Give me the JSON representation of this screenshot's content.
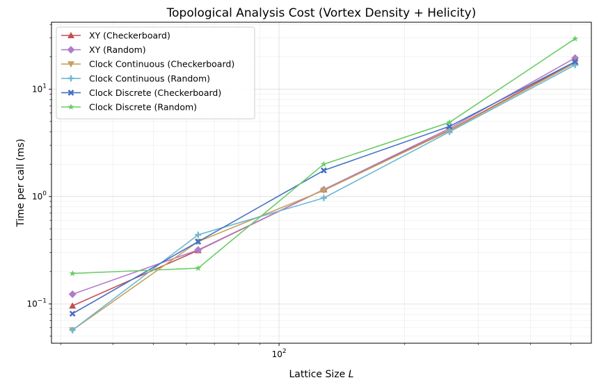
{
  "chart_data": {
    "type": "line",
    "title": "Topological Analysis Cost (Vortex Density + Helicity)",
    "xlabel_prefix": "Lattice Size ",
    "xlabel_var": "L",
    "ylabel": "Time per call (ms)",
    "xscale": "log",
    "yscale": "log",
    "xlim": [
      28.5,
      560
    ],
    "ylim": [
      0.043,
      42
    ],
    "grid": true,
    "legend_position": "top-left",
    "x": [
      32,
      64,
      128,
      256,
      512
    ],
    "x_tick_labels": [
      {
        "value": 100,
        "base": "10",
        "exp": "2"
      }
    ],
    "y_tick_labels": [
      {
        "value": 0.1,
        "base": "10",
        "exp": "−1"
      },
      {
        "value": 1,
        "base": "10",
        "exp": "0"
      },
      {
        "value": 10,
        "base": "10",
        "exp": "1"
      }
    ],
    "series": [
      {
        "name": "XY (Checkerboard)",
        "color": "#c44e52",
        "marker": "triangle-up",
        "values": [
          0.096,
          0.315,
          1.16,
          4.15,
          18.0
        ]
      },
      {
        "name": "XY (Random)",
        "color": "#b07cc6",
        "marker": "diamond",
        "values": [
          0.123,
          0.318,
          1.16,
          4.3,
          19.5
        ]
      },
      {
        "name": "Clock Continuous (Checkerboard)",
        "color": "#c4a25b",
        "marker": "triangle-down",
        "values": [
          0.057,
          0.38,
          1.14,
          4.1,
          17.5
        ]
      },
      {
        "name": "Clock Continuous (Random)",
        "color": "#6fb7d1",
        "marker": "plus",
        "values": [
          0.057,
          0.44,
          0.97,
          4.0,
          16.8
        ]
      },
      {
        "name": "Clock Discrete (Checkerboard)",
        "color": "#4470c4",
        "marker": "x",
        "values": [
          0.081,
          0.38,
          1.75,
          4.5,
          18.0
        ]
      },
      {
        "name": "Clock Discrete (Random)",
        "color": "#6acc64",
        "marker": "star",
        "values": [
          0.192,
          0.215,
          2.0,
          4.9,
          29.5
        ]
      }
    ]
  }
}
